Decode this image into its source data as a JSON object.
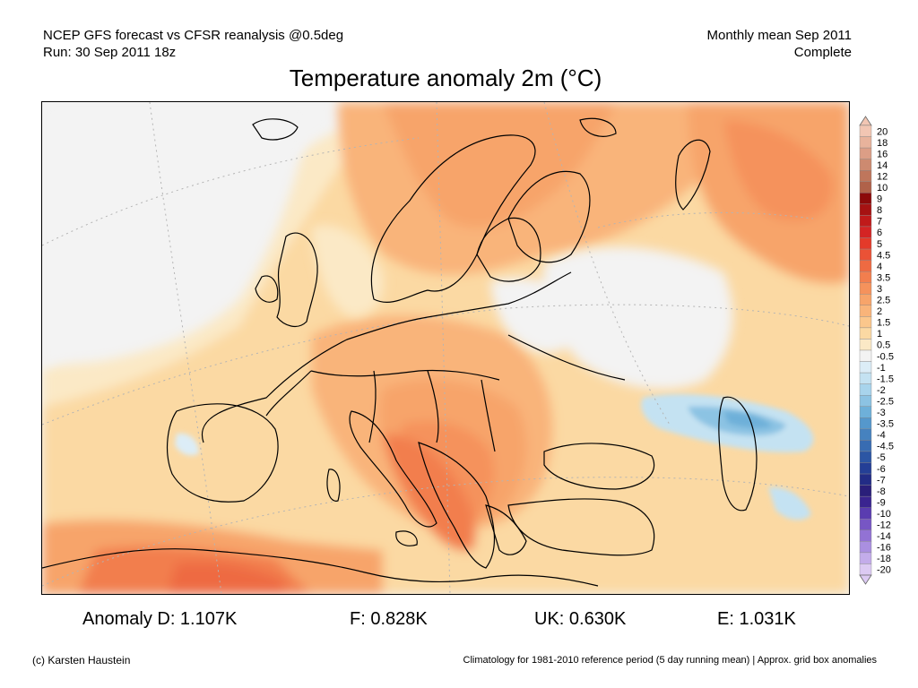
{
  "header": {
    "line1_left": "NCEP GFS forecast vs CFSR reanalysis @0.5deg",
    "line2_left": "Run: 30 Sep 2011 18z",
    "line1_right": "Monthly mean Sep 2011",
    "line2_right": "Complete"
  },
  "title": "Temperature anomaly 2m (°C)",
  "colorbar": {
    "levels": [
      {
        "label": "20",
        "color": "#f2c6b3"
      },
      {
        "label": "18",
        "color": "#e8b39c"
      },
      {
        "label": "16",
        "color": "#dc9e86"
      },
      {
        "label": "14",
        "color": "#cd8a70"
      },
      {
        "label": "12",
        "color": "#bf765c"
      },
      {
        "label": "10",
        "color": "#b0624a"
      },
      {
        "label": "9",
        "color": "#8c0a0a"
      },
      {
        "label": "8",
        "color": "#a61212"
      },
      {
        "label": "7",
        "color": "#c01a1a"
      },
      {
        "label": "6",
        "color": "#d42424"
      },
      {
        "label": "5",
        "color": "#e43a2a"
      },
      {
        "label": "4.5",
        "color": "#ea5236"
      },
      {
        "label": "4",
        "color": "#ee6a42"
      },
      {
        "label": "3.5",
        "color": "#f27e4e"
      },
      {
        "label": "3",
        "color": "#f5925c"
      },
      {
        "label": "2.5",
        "color": "#f7a46a"
      },
      {
        "label": "2",
        "color": "#f9b47a"
      },
      {
        "label": "1.5",
        "color": "#fbc78c"
      },
      {
        "label": "1",
        "color": "#fbd9a3"
      },
      {
        "label": "0.5",
        "color": "#fbe9c6"
      },
      {
        "label": "-0.5",
        "color": "#f3f3f3"
      },
      {
        "label": "-1",
        "color": "#dcedf7"
      },
      {
        "label": "-1.5",
        "color": "#c4e2f2"
      },
      {
        "label": "-2",
        "color": "#a8d4ec"
      },
      {
        "label": "-2.5",
        "color": "#8cc3e3"
      },
      {
        "label": "-3",
        "color": "#6eb0d9"
      },
      {
        "label": "-3.5",
        "color": "#5598cc"
      },
      {
        "label": "-4",
        "color": "#4682bf"
      },
      {
        "label": "-4.5",
        "color": "#386cb2"
      },
      {
        "label": "-5",
        "color": "#2c56a4"
      },
      {
        "label": "-6",
        "color": "#243f96"
      },
      {
        "label": "-7",
        "color": "#222c86"
      },
      {
        "label": "-8",
        "color": "#2a1f7a"
      },
      {
        "label": "-9",
        "color": "#3a2490"
      },
      {
        "label": "-10",
        "color": "#5a3cb0"
      },
      {
        "label": "-12",
        "color": "#7756c4"
      },
      {
        "label": "-14",
        "color": "#9272d4"
      },
      {
        "label": "-16",
        "color": "#aa8fe0"
      },
      {
        "label": "-18",
        "color": "#c3acea"
      },
      {
        "label": "-20",
        "color": "#dccaf3"
      }
    ]
  },
  "stats": {
    "anomaly_d": "Anomaly D: 1.107K",
    "f": "F: 0.828K",
    "uk": "UK: 0.630K",
    "e": "E: 1.031K"
  },
  "footer": {
    "copyright": "(c) Karsten Haustein",
    "note": "Climatology for 1981-2010 reference period (5 day running mean) | Approx. grid box anomalies"
  }
}
